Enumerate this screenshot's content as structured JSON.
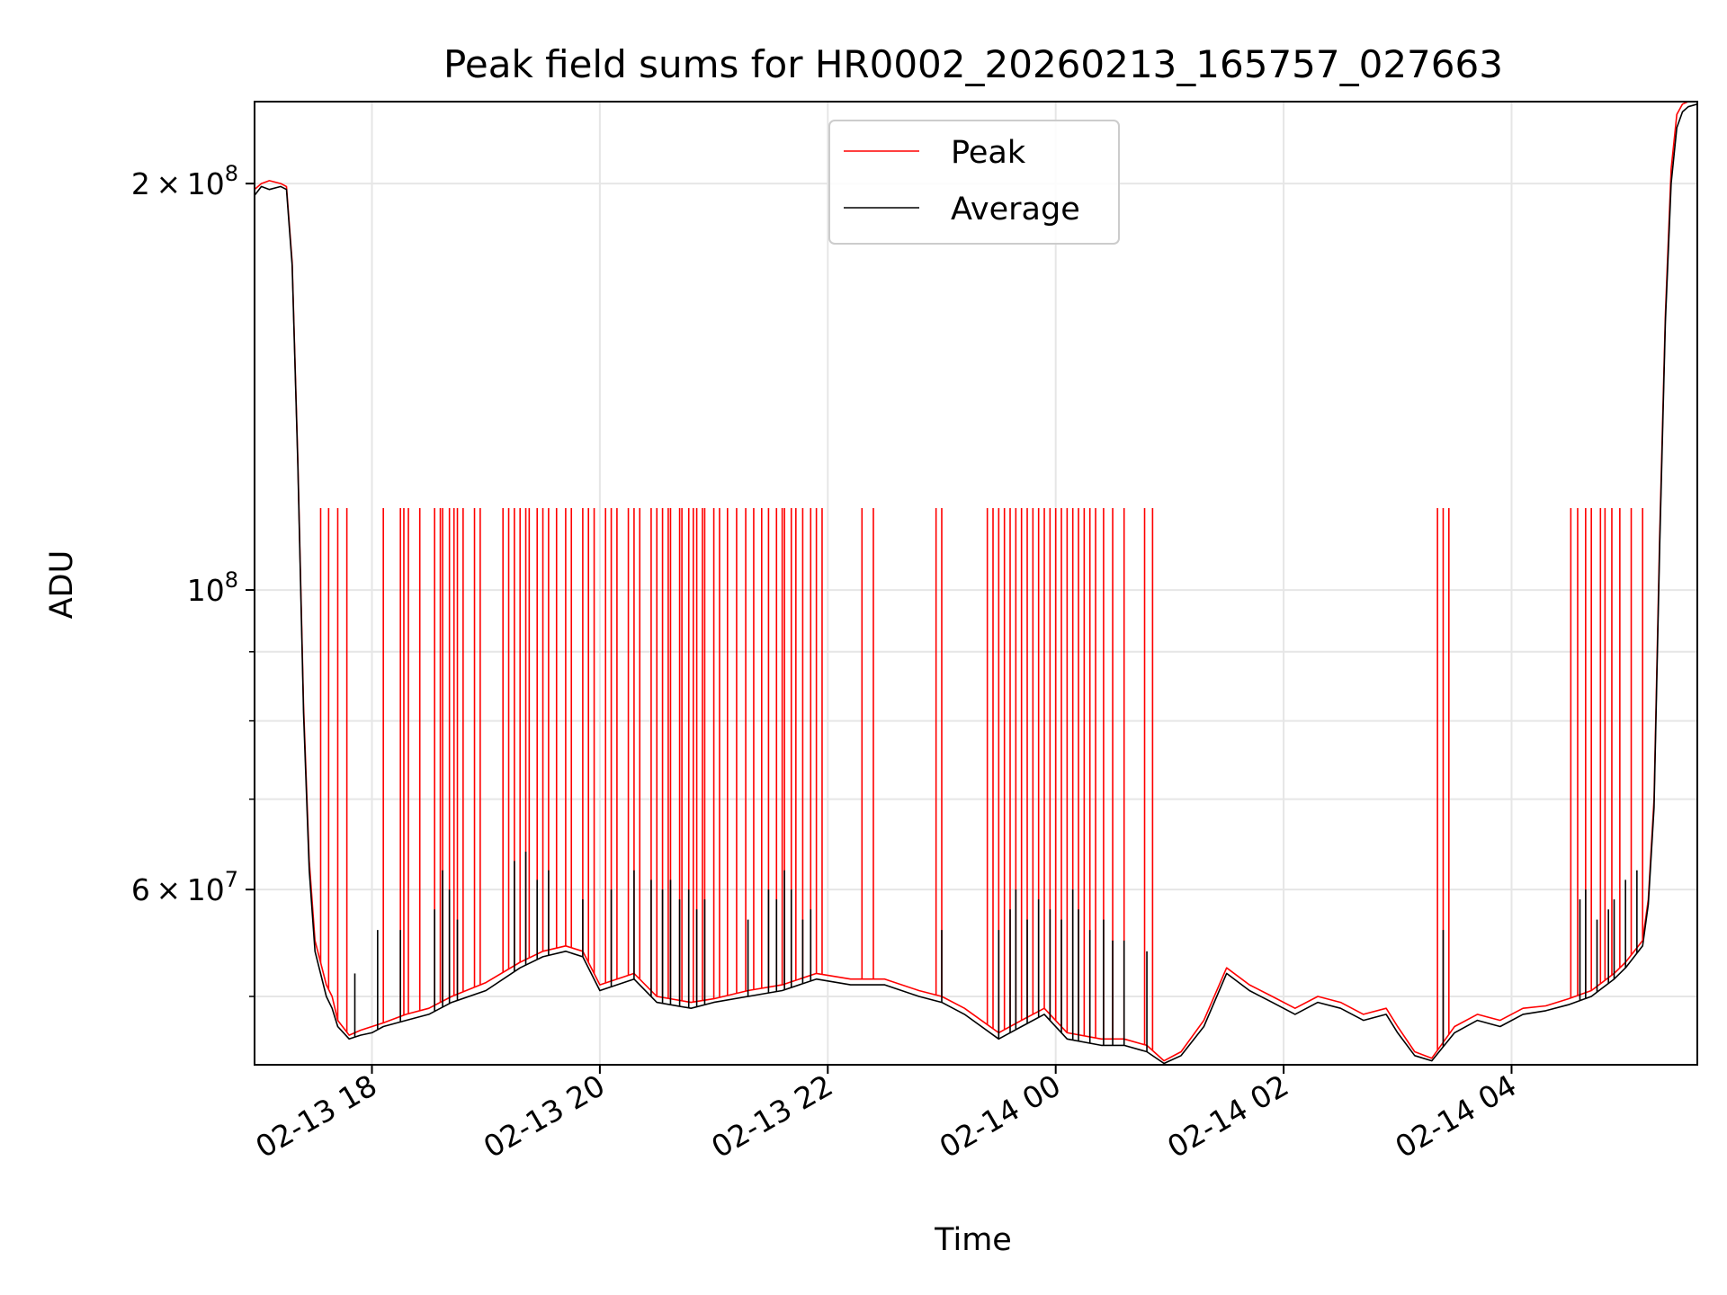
{
  "chart_data": {
    "type": "line",
    "title": "Peak field sums for HR0002_20260213_165757_027663",
    "xlabel": "Time",
    "ylabel": "ADU",
    "x_unit": "hours since 02-13 00:00",
    "xlim": [
      16.97,
      29.63
    ],
    "ylim": [
      44500000,
      230000000
    ],
    "yscale": "log",
    "grid": true,
    "legend_position": "top-center",
    "x_ticks": [
      {
        "value": 18,
        "label": "02-13 18"
      },
      {
        "value": 20,
        "label": "02-13 20"
      },
      {
        "value": 22,
        "label": "02-13 22"
      },
      {
        "value": 24,
        "label": "02-14 00"
      },
      {
        "value": 26,
        "label": "02-14 02"
      },
      {
        "value": 28,
        "label": "02-14 04"
      }
    ],
    "y_major_ticks": [
      {
        "value": 60000000,
        "label": "6×10⁷",
        "mantissa": "6",
        "base": "10",
        "exp": "7"
      },
      {
        "value": 100000000,
        "label": "10⁸",
        "mantissa": "",
        "base": "10",
        "exp": "8"
      },
      {
        "value": 200000000,
        "label": "2×10⁸",
        "mantissa": "2",
        "base": "10",
        "exp": "8"
      }
    ],
    "y_minor_ticks": [
      50000000,
      70000000,
      80000000,
      90000000
    ],
    "series": [
      {
        "name": "Peak",
        "color": "#ff0000",
        "x": [
          16.97,
          17.03,
          17.1,
          17.2,
          17.25,
          17.3,
          17.35,
          17.4,
          17.45,
          17.5,
          17.6,
          17.65,
          17.7,
          17.8,
          17.9,
          18.0,
          18.1,
          18.3,
          18.5,
          18.7,
          19.0,
          19.3,
          19.5,
          19.7,
          19.85,
          20.0,
          20.3,
          20.5,
          20.8,
          21.0,
          21.3,
          21.6,
          21.9,
          22.2,
          22.5,
          22.8,
          23.0,
          23.2,
          23.5,
          23.7,
          23.9,
          24.1,
          24.4,
          24.6,
          24.8,
          24.95,
          25.1,
          25.3,
          25.5,
          25.7,
          25.9,
          26.1,
          26.3,
          26.5,
          26.7,
          26.9,
          27.0,
          27.15,
          27.3,
          27.5,
          27.7,
          27.9,
          28.1,
          28.3,
          28.5,
          28.7,
          28.9,
          29.0,
          29.15,
          29.2,
          29.25,
          29.3,
          29.35,
          29.4,
          29.45,
          29.5,
          29.55,
          29.63
        ],
        "values": [
          198000000,
          200000000,
          201000000,
          200000000,
          199000000,
          175000000,
          125000000,
          82000000,
          63000000,
          55000000,
          51000000,
          50000000,
          48000000,
          46800000,
          47200000,
          47500000,
          47800000,
          48500000,
          49000000,
          50000000,
          51200000,
          53000000,
          54000000,
          54500000,
          54000000,
          51000000,
          52000000,
          50000000,
          49500000,
          49800000,
          50500000,
          51000000,
          52000000,
          51500000,
          51500000,
          50500000,
          50000000,
          49000000,
          47000000,
          48000000,
          49000000,
          47000000,
          46500000,
          46500000,
          46000000,
          44800000,
          45500000,
          48000000,
          52500000,
          51000000,
          50000000,
          49000000,
          50000000,
          49500000,
          48500000,
          49000000,
          47500000,
          45500000,
          45000000,
          47500000,
          48500000,
          48000000,
          49000000,
          49200000,
          49800000,
          50500000,
          52000000,
          53000000,
          55000000,
          59000000,
          70000000,
          110000000,
          160000000,
          205000000,
          225000000,
          229000000,
          230000000,
          230000000
        ],
        "spike_x": [
          17.55,
          17.62,
          17.7,
          17.78,
          18.1,
          18.25,
          18.28,
          18.32,
          18.42,
          18.55,
          18.6,
          18.62,
          18.68,
          18.72,
          18.75,
          18.8,
          18.9,
          18.95,
          19.15,
          19.2,
          19.25,
          19.3,
          19.35,
          19.38,
          19.45,
          19.5,
          19.55,
          19.62,
          19.7,
          19.75,
          19.85,
          19.9,
          19.95,
          20.05,
          20.1,
          20.15,
          20.25,
          20.3,
          20.35,
          20.45,
          20.5,
          20.55,
          20.6,
          20.62,
          20.7,
          20.72,
          20.78,
          20.82,
          20.85,
          20.9,
          20.92,
          21.0,
          21.05,
          21.12,
          21.2,
          21.28,
          21.35,
          21.42,
          21.48,
          21.55,
          21.6,
          21.62,
          21.68,
          21.72,
          21.78,
          21.85,
          21.9,
          21.95,
          22.3,
          22.4,
          22.95,
          23.0,
          23.4,
          23.45,
          23.5,
          23.55,
          23.6,
          23.65,
          23.7,
          23.75,
          23.8,
          23.85,
          23.9,
          23.95,
          24.0,
          24.05,
          24.1,
          24.15,
          24.2,
          24.25,
          24.3,
          24.35,
          24.42,
          24.5,
          24.6,
          24.78,
          24.85,
          27.35,
          27.4,
          27.45,
          28.52,
          28.58,
          28.65,
          28.7,
          28.78,
          28.82,
          28.88,
          28.95,
          29.05,
          29.15
        ],
        "spike_peak": 115000000
      },
      {
        "name": "Average",
        "color": "#000000",
        "x": [
          16.97,
          17.03,
          17.1,
          17.2,
          17.25,
          17.3,
          17.35,
          17.4,
          17.45,
          17.5,
          17.6,
          17.65,
          17.7,
          17.8,
          17.9,
          18.0,
          18.1,
          18.3,
          18.5,
          18.7,
          19.0,
          19.3,
          19.5,
          19.7,
          19.85,
          20.0,
          20.3,
          20.5,
          20.8,
          21.0,
          21.3,
          21.6,
          21.9,
          22.2,
          22.5,
          22.8,
          23.0,
          23.2,
          23.5,
          23.7,
          23.9,
          24.1,
          24.4,
          24.6,
          24.8,
          24.95,
          25.1,
          25.3,
          25.5,
          25.7,
          25.9,
          26.1,
          26.3,
          26.5,
          26.7,
          26.9,
          27.0,
          27.15,
          27.3,
          27.5,
          27.7,
          27.9,
          28.1,
          28.3,
          28.5,
          28.7,
          28.9,
          29.0,
          29.15,
          29.2,
          29.25,
          29.3,
          29.35,
          29.4,
          29.45,
          29.5,
          29.55,
          29.63
        ],
        "values": [
          196000000,
          199000000,
          198000000,
          199000000,
          198000000,
          174000000,
          124000000,
          81000000,
          62000000,
          54000000,
          50000000,
          49000000,
          47500000,
          46500000,
          46800000,
          47000000,
          47500000,
          48000000,
          48500000,
          49500000,
          50500000,
          52500000,
          53500000,
          54000000,
          53500000,
          50500000,
          51500000,
          49500000,
          49000000,
          49500000,
          50000000,
          50500000,
          51500000,
          51000000,
          51000000,
          50000000,
          49500000,
          48500000,
          46500000,
          47500000,
          48500000,
          46500000,
          46000000,
          46000000,
          45500000,
          44600000,
          45200000,
          47500000,
          52000000,
          50500000,
          49500000,
          48500000,
          49500000,
          49000000,
          48000000,
          48500000,
          47000000,
          45200000,
          44800000,
          47000000,
          48000000,
          47500000,
          48500000,
          48800000,
          49300000,
          50000000,
          51500000,
          52500000,
          54500000,
          58500000,
          69000000,
          108000000,
          158000000,
          200000000,
          220000000,
          226000000,
          228000000,
          229000000
        ],
        "spike_x": [
          17.85,
          18.05,
          18.25,
          18.55,
          18.62,
          18.68,
          18.75,
          19.25,
          19.35,
          19.45,
          19.55,
          19.85,
          20.1,
          20.3,
          20.45,
          20.55,
          20.62,
          20.7,
          20.78,
          20.85,
          20.92,
          21.3,
          21.48,
          21.55,
          21.62,
          21.68,
          21.78,
          21.85,
          23.0,
          23.5,
          23.6,
          23.65,
          23.75,
          23.85,
          23.95,
          24.05,
          24.15,
          24.2,
          24.3,
          24.42,
          24.5,
          24.6,
          24.8,
          27.4,
          28.6,
          28.65,
          28.75,
          28.85,
          28.9,
          29.0,
          29.1
        ],
        "spike_values": [
          52000000,
          56000000,
          56000000,
          58000000,
          62000000,
          60000000,
          57000000,
          63000000,
          64000000,
          61000000,
          62000000,
          59000000,
          60000000,
          62000000,
          61000000,
          60000000,
          61000000,
          59000000,
          60000000,
          58000000,
          59000000,
          57000000,
          60000000,
          59000000,
          62000000,
          60000000,
          57000000,
          58000000,
          56000000,
          56000000,
          58000000,
          60000000,
          57000000,
          59000000,
          58000000,
          57000000,
          60000000,
          58000000,
          56000000,
          57000000,
          55000000,
          55000000,
          54000000,
          56000000,
          59000000,
          60000000,
          57000000,
          58000000,
          59000000,
          61000000,
          62000000
        ]
      }
    ]
  }
}
